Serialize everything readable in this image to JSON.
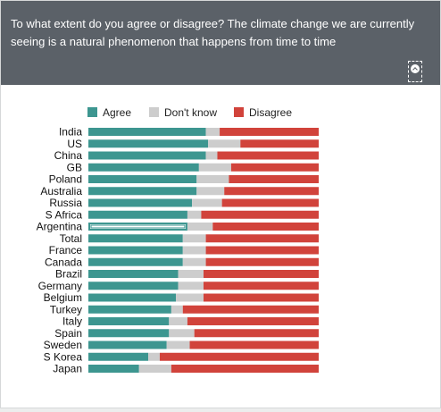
{
  "header": {
    "question": "To what extent do you agree or disagree? The climate change we are currently seeing is a natural phenomenon that happens from time to time",
    "toggle_icon": "chevron-up-icon"
  },
  "colors": {
    "agree": "#3d9690",
    "dont_know": "#cdcdcd",
    "disagree": "#d1433b",
    "header_bg": "#5b6168"
  },
  "chart_data": {
    "type": "bar",
    "orientation": "horizontal",
    "stacked": true,
    "legend_position": "top",
    "categories": [
      "India",
      "US",
      "China",
      "GB",
      "Poland",
      "Australia",
      "Russia",
      "S Africa",
      "Argentina",
      "Total",
      "France",
      "Canada",
      "Brazil",
      "Germany",
      "Belgium",
      "Turkey",
      "Italy",
      "Spain",
      "Sweden",
      "S Korea",
      "Japan"
    ],
    "series": [
      {
        "name": "Agree",
        "values": [
          51,
          52,
          51,
          48,
          47,
          47,
          45,
          43,
          43,
          41,
          41,
          41,
          39,
          39,
          38,
          36,
          35,
          35,
          34,
          26,
          22
        ]
      },
      {
        "name": "Don't know",
        "values": [
          6,
          14,
          5,
          14,
          14,
          12,
          13,
          6,
          11,
          10,
          10,
          10,
          11,
          11,
          12,
          5,
          8,
          11,
          10,
          5,
          14
        ]
      },
      {
        "name": "Disagree",
        "values": [
          43,
          34,
          44,
          38,
          39,
          41,
          42,
          51,
          46,
          49,
          49,
          49,
          50,
          50,
          50,
          59,
          57,
          54,
          56,
          69,
          64
        ]
      }
    ],
    "highlighted_category": "Argentina",
    "xlim": [
      0,
      100
    ]
  }
}
